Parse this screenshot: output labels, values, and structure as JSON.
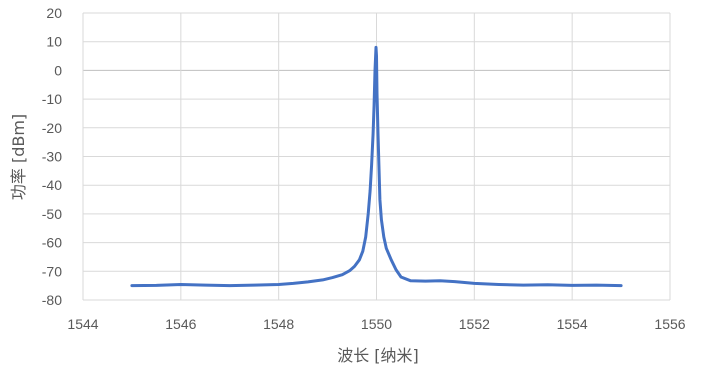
{
  "chart_data": {
    "type": "line",
    "xlabel": "波长 [纳米]",
    "ylabel": "功率 [dBm]",
    "xlim": [
      1544,
      1556
    ],
    "ylim": [
      -80,
      20
    ],
    "x_ticks": [
      1544,
      1546,
      1548,
      1550,
      1552,
      1554,
      1556
    ],
    "y_ticks": [
      20,
      10,
      0,
      -10,
      -20,
      -30,
      -40,
      -50,
      -60,
      -70,
      -80
    ],
    "grid": true,
    "legend": "none",
    "series": [
      {
        "color": "#4472c4",
        "x": [
          1545.0,
          1545.5,
          1546.0,
          1546.5,
          1547.0,
          1547.5,
          1548.0,
          1548.3,
          1548.6,
          1548.9,
          1549.1,
          1549.3,
          1549.45,
          1549.55,
          1549.65,
          1549.72,
          1549.78,
          1549.83,
          1549.87,
          1549.9,
          1549.93,
          1549.95,
          1549.97,
          1549.99,
          1550.0,
          1550.01,
          1550.03,
          1550.05,
          1550.07,
          1550.1,
          1550.15,
          1550.2,
          1550.3,
          1550.4,
          1550.5,
          1550.7,
          1551.0,
          1551.3,
          1551.6,
          1552.0,
          1552.5,
          1553.0,
          1553.5,
          1554.0,
          1554.5,
          1555.0
        ],
        "y": [
          -75.0,
          -74.9,
          -74.6,
          -74.8,
          -75.0,
          -74.8,
          -74.6,
          -74.2,
          -73.7,
          -73.0,
          -72.2,
          -71.2,
          -69.8,
          -68.3,
          -66.0,
          -63.0,
          -58.0,
          -50.0,
          -42.0,
          -33.0,
          -22.0,
          -12.0,
          0.0,
          8.0,
          5.0,
          -8.0,
          -22.0,
          -33.0,
          -45.0,
          -52.0,
          -58.0,
          -62.0,
          -66.0,
          -69.5,
          -72.0,
          -73.3,
          -73.4,
          -73.3,
          -73.6,
          -74.2,
          -74.6,
          -74.8,
          -74.7,
          -74.9,
          -74.8,
          -75.0
        ]
      }
    ]
  }
}
